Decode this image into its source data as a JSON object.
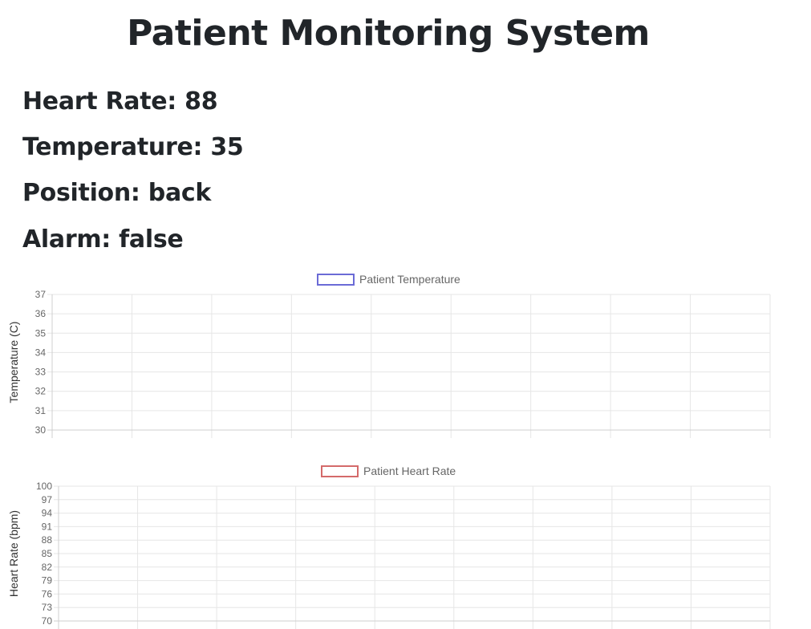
{
  "page": {
    "title": "Patient Monitoring System"
  },
  "vitals": {
    "heart_rate": {
      "label": "Heart Rate: ",
      "value": "88"
    },
    "temperature": {
      "label": "Temperature: ",
      "value": "35"
    },
    "position": {
      "label": "Position: ",
      "value": "back"
    },
    "alarm": {
      "label": "Alarm: ",
      "value": "false"
    }
  },
  "chart_data": [
    {
      "type": "line",
      "legend": "Patient Temperature",
      "series": [
        {
          "name": "Patient Temperature",
          "color": "#6b6bd6",
          "values": []
        }
      ],
      "ylabel": "Temperature (C)",
      "ylim": [
        30,
        37
      ],
      "yticks": [
        30,
        31,
        32,
        33,
        34,
        35,
        36,
        37
      ],
      "x_gridlines": 10,
      "grid": true,
      "legend_position": "top"
    },
    {
      "type": "line",
      "legend": "Patient Heart Rate",
      "series": [
        {
          "name": "Patient Heart Rate",
          "color": "#d46a6a",
          "values": []
        }
      ],
      "ylabel": "Heart Rate (bpm)",
      "ylim": [
        70,
        100
      ],
      "yticks": [
        70,
        73,
        76,
        79,
        82,
        85,
        88,
        91,
        94,
        97,
        100
      ],
      "x_gridlines": 10,
      "grid": true,
      "legend_position": "top"
    }
  ]
}
